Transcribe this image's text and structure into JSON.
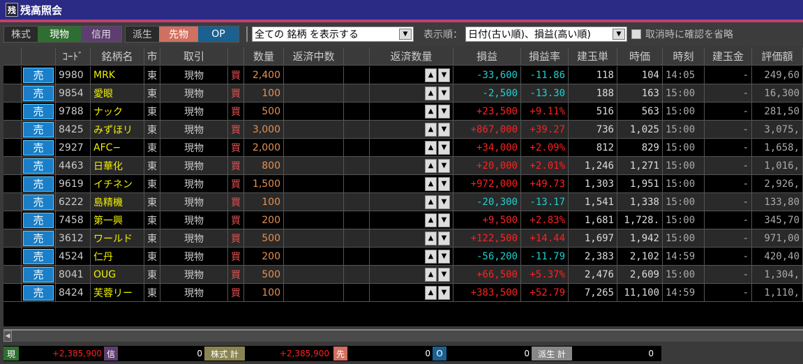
{
  "window": {
    "title": "残高照会",
    "icon_char": "残"
  },
  "toolbar": {
    "stock_label": "株式",
    "genbutsu": "現物",
    "shinyo": "信用",
    "deriv_label": "派生",
    "futures": "先物",
    "op": "OP",
    "filter_value": "全ての 銘柄 を表示する",
    "sort_label": "表示順：",
    "sort_value": "日付(古い順)、損益(高い順)",
    "skip_confirm_label": "取消時に確認を省略",
    "skip_confirm_checked": false
  },
  "colors": {
    "profit": "#ff2020",
    "loss": "#20d0d0",
    "name": "#f0f000",
    "qty": "#e89050",
    "buy": "#e05050"
  },
  "columns": [
    "",
    "",
    "ｺｰﾄﾞ",
    "銘柄名",
    "市",
    "取引",
    "",
    "数量",
    "返済中数",
    "",
    "返済数量",
    "損益",
    "損益率",
    "建玉単",
    "時価",
    "時刻",
    "建玉金",
    "評価額"
  ],
  "sell_label": "売",
  "buy_label": "買",
  "rows": [
    {
      "code": "9980",
      "name": "MRK",
      "market": "東",
      "trade": "現物",
      "qty": "2,400",
      "pl": "-33,600",
      "rate": "-11.86",
      "cost": "118",
      "price": "104",
      "time": "14:05",
      "margin": "-",
      "value": "249,60"
    },
    {
      "code": "9854",
      "name": "愛眼",
      "market": "東",
      "trade": "現物",
      "qty": "100",
      "pl": "-2,500",
      "rate": "-13.30",
      "cost": "188",
      "price": "163",
      "time": "15:00",
      "margin": "-",
      "value": "16,300"
    },
    {
      "code": "9788",
      "name": "ナック",
      "market": "東",
      "trade": "現物",
      "qty": "500",
      "pl": "+23,500",
      "rate": "+9.11%",
      "cost": "516",
      "price": "563",
      "time": "15:00",
      "margin": "-",
      "value": "281,50"
    },
    {
      "code": "8425",
      "name": "みずほリ",
      "market": "東",
      "trade": "現物",
      "qty": "3,000",
      "pl": "+867,000",
      "rate": "+39.27",
      "cost": "736",
      "price": "1,025",
      "time": "15:00",
      "margin": "-",
      "value": "3,075,"
    },
    {
      "code": "2927",
      "name": "AFC−",
      "market": "東",
      "trade": "現物",
      "qty": "2,000",
      "pl": "+34,000",
      "rate": "+2.09%",
      "cost": "812",
      "price": "829",
      "time": "15:00",
      "margin": "-",
      "value": "1,658,"
    },
    {
      "code": "4463",
      "name": "日華化",
      "market": "東",
      "trade": "現物",
      "qty": "800",
      "pl": "+20,000",
      "rate": "+2.01%",
      "cost": "1,246",
      "price": "1,271",
      "time": "15:00",
      "margin": "-",
      "value": "1,016,"
    },
    {
      "code": "9619",
      "name": "イチネン",
      "market": "東",
      "trade": "現物",
      "qty": "1,500",
      "pl": "+972,000",
      "rate": "+49.73",
      "cost": "1,303",
      "price": "1,951",
      "time": "15:00",
      "margin": "-",
      "value": "2,926,"
    },
    {
      "code": "6222",
      "name": "島精機",
      "market": "東",
      "trade": "現物",
      "qty": "100",
      "pl": "-20,300",
      "rate": "-13.17",
      "cost": "1,541",
      "price": "1,338",
      "time": "15:00",
      "margin": "-",
      "value": "133,80"
    },
    {
      "code": "7458",
      "name": "第一興",
      "market": "東",
      "trade": "現物",
      "qty": "200",
      "pl": "+9,500",
      "rate": "+2.83%",
      "cost": "1,681",
      "price": "1,728.",
      "time": "15:00",
      "margin": "-",
      "value": "345,70"
    },
    {
      "code": "3612",
      "name": "ワールド",
      "market": "東",
      "trade": "現物",
      "qty": "500",
      "pl": "+122,500",
      "rate": "+14.44",
      "cost": "1,697",
      "price": "1,942",
      "time": "15:00",
      "margin": "-",
      "value": "971,00"
    },
    {
      "code": "4524",
      "name": "仁丹",
      "market": "東",
      "trade": "現物",
      "qty": "200",
      "pl": "-56,200",
      "rate": "-11.79",
      "cost": "2,383",
      "price": "2,102",
      "time": "14:59",
      "margin": "-",
      "value": "420,40"
    },
    {
      "code": "8041",
      "name": "OUG",
      "market": "東",
      "trade": "現物",
      "qty": "500",
      "pl": "+66,500",
      "rate": "+5.37%",
      "cost": "2,476",
      "price": "2,609",
      "time": "15:00",
      "margin": "-",
      "value": "1,304,"
    },
    {
      "code": "8424",
      "name": "芙蓉リー",
      "market": "東",
      "trade": "現物",
      "qty": "100",
      "pl": "+383,500",
      "rate": "+52.79",
      "cost": "7,265",
      "price": "11,100",
      "time": "14:59",
      "margin": "-",
      "value": "1,110,"
    }
  ],
  "footer": {
    "genbutsu_label": "現",
    "genbutsu_value": "+2,385,900",
    "shinyo_label": "信",
    "shinyo_value": "0",
    "stock_total_label": "株式 計",
    "stock_total_value": "+2,385,900",
    "futures_label": "先",
    "futures_value": "0",
    "op_label": "O",
    "op_value": "0",
    "deriv_total_label": "派生 計",
    "deriv_total_value": "0"
  }
}
